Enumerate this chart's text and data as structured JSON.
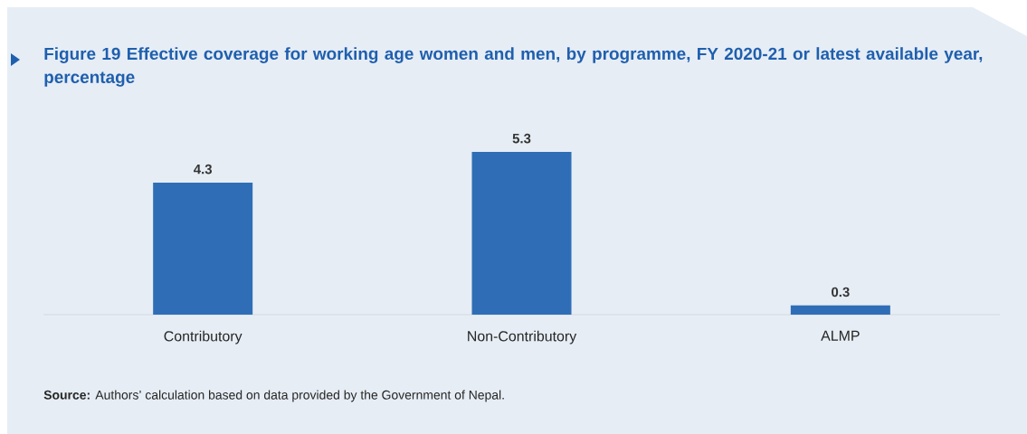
{
  "chart_data": {
    "type": "bar",
    "title": "Figure 19 Effective coverage for working age women and men, by programme, FY 2020-21 or latest available year, percentage",
    "categories": [
      "Contributory",
      "Non-Contributory",
      "ALMP"
    ],
    "values": [
      4.3,
      5.3,
      0.3
    ],
    "color": "#2f6eb6",
    "data_labels": true,
    "annotations": [
      "**Source:** Authors’ calculation based on data provided by the Government of Nepal."
    ]
  }
}
